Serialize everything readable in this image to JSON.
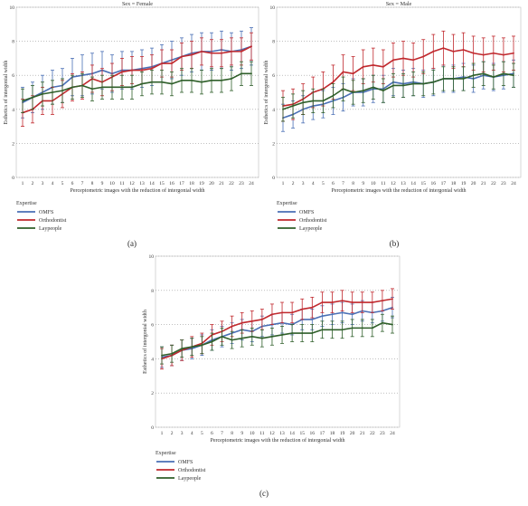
{
  "colors": {
    "OMFS": "#4a6fb5",
    "Orthodontist": "#c0282d",
    "Laypeople": "#2f5f2a"
  },
  "chart_data": [
    {
      "type": "line",
      "title": "Sex = Female",
      "xlabel": "Perceptometric images with the reduction of intergonial width",
      "ylabel": "Esthetics of intergonial width",
      "ylim": [
        0,
        10
      ],
      "yticks": [
        0,
        2,
        4,
        6,
        8,
        10
      ],
      "grid": "horizontal-dotted",
      "categories": [
        1,
        2,
        3,
        4,
        5,
        6,
        7,
        8,
        9,
        10,
        11,
        12,
        13,
        14,
        15,
        16,
        17,
        18,
        19,
        20,
        21,
        22,
        23,
        24
      ],
      "legend_title": "Expertise",
      "panel_label": "(a)",
      "series": [
        {
          "name": "OMFS",
          "values": [
            4.4,
            4.7,
            5.0,
            5.3,
            5.4,
            5.9,
            6.0,
            6.1,
            6.3,
            6.1,
            6.3,
            6.3,
            6.4,
            6.5,
            6.7,
            6.9,
            7.1,
            7.3,
            7.4,
            7.4,
            7.5,
            7.4,
            7.5,
            7.7
          ],
          "err": [
            0.9,
            0.9,
            1.0,
            1.0,
            1.0,
            1.1,
            1.2,
            1.2,
            1.1,
            1.1,
            1.1,
            1.1,
            1.1,
            1.1,
            1.1,
            1.1,
            1.1,
            1.1,
            1.1,
            1.1,
            1.1,
            1.1,
            1.1,
            1.1
          ]
        },
        {
          "name": "Orthodontist",
          "values": [
            3.8,
            4.0,
            4.5,
            4.5,
            4.9,
            5.3,
            5.4,
            5.8,
            5.6,
            5.9,
            6.2,
            6.3,
            6.3,
            6.4,
            6.7,
            6.7,
            7.1,
            7.2,
            7.4,
            7.3,
            7.3,
            7.4,
            7.4,
            7.7
          ],
          "err": [
            0.8,
            0.8,
            0.8,
            0.8,
            0.8,
            0.8,
            0.8,
            0.8,
            0.8,
            0.8,
            0.8,
            0.8,
            0.8,
            0.8,
            0.8,
            0.8,
            0.8,
            0.8,
            0.8,
            0.8,
            0.8,
            0.8,
            0.8,
            0.8
          ]
        },
        {
          "name": "Laypeople",
          "values": [
            4.5,
            4.7,
            4.9,
            5.0,
            5.1,
            5.3,
            5.4,
            5.2,
            5.3,
            5.3,
            5.3,
            5.3,
            5.5,
            5.6,
            5.6,
            5.5,
            5.7,
            5.7,
            5.6,
            5.7,
            5.7,
            5.8,
            6.1,
            6.1
          ],
          "err": [
            0.7,
            0.7,
            0.7,
            0.7,
            0.7,
            0.7,
            0.7,
            0.7,
            0.7,
            0.7,
            0.7,
            0.7,
            0.7,
            0.7,
            0.7,
            0.7,
            0.7,
            0.7,
            0.7,
            0.7,
            0.7,
            0.7,
            0.7,
            0.7
          ]
        }
      ]
    },
    {
      "type": "line",
      "title": "Sex = Male",
      "xlabel": "Perceptometric images with the reduction of intergonial width",
      "ylabel": "Esthetics of intergonial width",
      "ylim": [
        0,
        10
      ],
      "yticks": [
        0,
        2,
        4,
        6,
        8,
        10
      ],
      "grid": "horizontal-dotted",
      "categories": [
        1,
        2,
        3,
        4,
        5,
        6,
        7,
        8,
        9,
        10,
        11,
        12,
        13,
        14,
        15,
        16,
        17,
        18,
        19,
        20,
        21,
        22,
        23,
        24
      ],
      "legend_title": "Expertise",
      "panel_label": "(b)",
      "series": [
        {
          "name": "OMFS",
          "values": [
            3.5,
            3.7,
            4.0,
            4.2,
            4.3,
            4.5,
            4.7,
            5.0,
            5.0,
            5.2,
            5.2,
            5.6,
            5.5,
            5.6,
            5.5,
            5.6,
            5.8,
            5.8,
            5.9,
            5.8,
            6.0,
            5.9,
            6.0,
            6.1
          ],
          "err": [
            0.8,
            0.8,
            0.8,
            0.8,
            0.8,
            0.8,
            0.8,
            0.8,
            0.8,
            0.8,
            0.8,
            0.8,
            0.8,
            0.8,
            0.8,
            0.8,
            0.8,
            0.8,
            0.8,
            0.8,
            0.8,
            0.8,
            0.8,
            0.8
          ]
        },
        {
          "name": "Orthodontist",
          "values": [
            4.2,
            4.3,
            4.6,
            5.0,
            5.2,
            5.6,
            6.2,
            6.1,
            6.5,
            6.6,
            6.5,
            6.9,
            7.0,
            6.9,
            7.1,
            7.4,
            7.6,
            7.4,
            7.5,
            7.3,
            7.2,
            7.3,
            7.2,
            7.3
          ],
          "err": [
            0.9,
            0.9,
            0.9,
            0.9,
            1.0,
            1.0,
            1.0,
            1.0,
            1.0,
            1.0,
            1.0,
            1.0,
            1.0,
            1.0,
            1.0,
            1.0,
            1.0,
            1.0,
            1.0,
            1.0,
            1.0,
            1.0,
            1.0,
            1.0
          ]
        },
        {
          "name": "Laypeople",
          "values": [
            4.0,
            4.2,
            4.4,
            4.5,
            4.5,
            4.8,
            5.2,
            5.0,
            5.1,
            5.3,
            5.1,
            5.4,
            5.4,
            5.5,
            5.5,
            5.6,
            5.8,
            5.8,
            5.8,
            6.0,
            6.1,
            5.9,
            6.1,
            6.0
          ],
          "err": [
            0.7,
            0.7,
            0.7,
            0.7,
            0.7,
            0.7,
            0.7,
            0.7,
            0.7,
            0.7,
            0.7,
            0.7,
            0.7,
            0.7,
            0.7,
            0.7,
            0.7,
            0.7,
            0.7,
            0.7,
            0.7,
            0.7,
            0.7,
            0.7
          ]
        }
      ]
    },
    {
      "type": "line",
      "title": "",
      "xlabel": "Perceptometric images with the reduction of intergonial width",
      "ylabel": "Esthetics of intergonial width",
      "ylim": [
        0,
        10
      ],
      "yticks": [
        0,
        2,
        4,
        6,
        8,
        10
      ],
      "grid": "horizontal-dotted",
      "categories": [
        1,
        2,
        3,
        4,
        5,
        6,
        7,
        8,
        9,
        10,
        11,
        12,
        13,
        14,
        15,
        16,
        17,
        18,
        19,
        20,
        21,
        22,
        23,
        24
      ],
      "legend_title": "Expertise",
      "panel_label": "(c)",
      "series": [
        {
          "name": "OMFS",
          "values": [
            4.1,
            4.2,
            4.5,
            4.6,
            4.8,
            5.1,
            5.3,
            5.5,
            5.7,
            5.6,
            5.9,
            6.0,
            6.1,
            6.0,
            6.3,
            6.3,
            6.5,
            6.6,
            6.7,
            6.6,
            6.8,
            6.7,
            6.8,
            7.0
          ],
          "err": [
            0.6,
            0.6,
            0.6,
            0.6,
            0.6,
            0.6,
            0.6,
            0.6,
            0.6,
            0.6,
            0.6,
            0.6,
            0.6,
            0.6,
            0.6,
            0.6,
            0.6,
            0.6,
            0.6,
            0.6,
            0.6,
            0.6,
            0.6,
            0.6
          ]
        },
        {
          "name": "Orthodontist",
          "values": [
            4.0,
            4.2,
            4.5,
            4.7,
            4.9,
            5.4,
            5.6,
            5.9,
            6.1,
            6.2,
            6.3,
            6.6,
            6.7,
            6.7,
            6.9,
            7.0,
            7.3,
            7.3,
            7.4,
            7.3,
            7.3,
            7.3,
            7.4,
            7.5
          ],
          "err": [
            0.6,
            0.6,
            0.6,
            0.6,
            0.6,
            0.6,
            0.6,
            0.6,
            0.6,
            0.6,
            0.6,
            0.6,
            0.6,
            0.6,
            0.6,
            0.6,
            0.6,
            0.6,
            0.6,
            0.6,
            0.6,
            0.6,
            0.6,
            0.6
          ]
        },
        {
          "name": "Laypeople",
          "values": [
            4.2,
            4.3,
            4.6,
            4.7,
            4.8,
            5.0,
            5.3,
            5.1,
            5.2,
            5.3,
            5.2,
            5.3,
            5.4,
            5.5,
            5.5,
            5.5,
            5.7,
            5.7,
            5.7,
            5.8,
            5.8,
            5.8,
            6.1,
            6.0
          ],
          "err": [
            0.5,
            0.5,
            0.5,
            0.5,
            0.5,
            0.5,
            0.5,
            0.5,
            0.5,
            0.5,
            0.5,
            0.5,
            0.5,
            0.5,
            0.5,
            0.5,
            0.5,
            0.5,
            0.5,
            0.5,
            0.5,
            0.5,
            0.5,
            0.5
          ]
        }
      ]
    }
  ]
}
